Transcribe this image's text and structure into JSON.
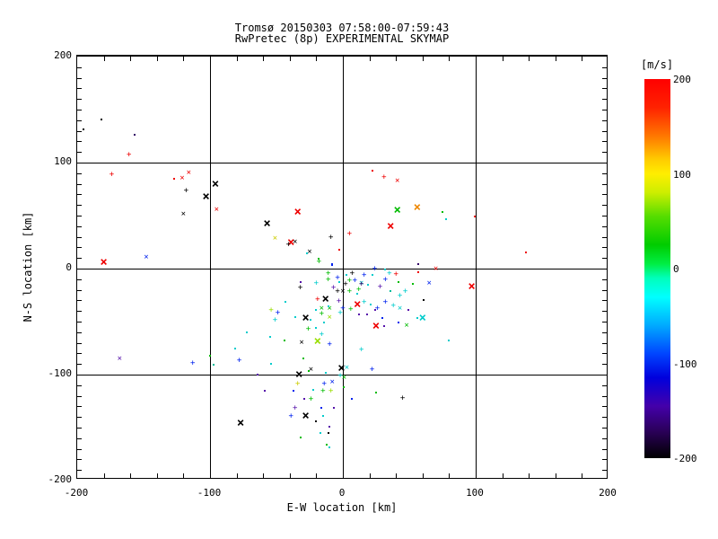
{
  "window": {
    "background": "#ffffff"
  },
  "chart_data": {
    "type": "scatter",
    "title": "Tromsø 20150303 07:58:00-07:59:43",
    "subtitle": "RwPretec (8p) EXPERIMENTAL SKYMAP",
    "xlabel": "E-W location [km]",
    "ylabel": "N-S location [km]",
    "xlim": [
      -200,
      200
    ],
    "ylim": [
      -200,
      200
    ],
    "grid": true,
    "grid_values_x": [
      -100,
      0,
      100
    ],
    "grid_values_y": [
      -100,
      0,
      100
    ],
    "x_major_ticks": [
      -200,
      -100,
      0,
      100,
      200
    ],
    "x_tick_labels": [
      "-200",
      "-100",
      "0",
      "100",
      "200"
    ],
    "x_minor_step": 20,
    "y_major_ticks": [
      -200,
      -100,
      0,
      100,
      200
    ],
    "y_tick_labels": [
      "-200",
      "-100",
      "0",
      "100",
      "200"
    ],
    "y_minor_step": 10,
    "colorbar": {
      "title": "[m/s]",
      "range": [
        -200,
        200
      ],
      "tick_values": [
        200,
        100,
        0,
        -100,
        -200
      ],
      "tick_labels": [
        "200",
        "100",
        "0",
        "-100",
        "-200"
      ],
      "stops": [
        [
          200,
          "#ff0000"
        ],
        [
          170,
          "#ff2200"
        ],
        [
          140,
          "#ff7700"
        ],
        [
          115,
          "#ffcc00"
        ],
        [
          100,
          "#ffee00"
        ],
        [
          80,
          "#ccee00"
        ],
        [
          55,
          "#55dd00"
        ],
        [
          25,
          "#00cc00"
        ],
        [
          5,
          "#00ee44"
        ],
        [
          -10,
          "#00ffbb"
        ],
        [
          -30,
          "#00ffff"
        ],
        [
          -60,
          "#00aaff"
        ],
        [
          -90,
          "#0044ff"
        ],
        [
          -115,
          "#0000dd"
        ],
        [
          -145,
          "#4400aa"
        ],
        [
          -172,
          "#2a0058"
        ],
        [
          -200,
          "#000000"
        ]
      ]
    },
    "palette": {
      "k": "#000000",
      "r": "#ee0000",
      "o": "#ee8800",
      "y": "#cccc00",
      "yg": "#99dd00",
      "g": "#00bb00",
      "t": "#00bb99",
      "c": "#00cccc",
      "b": "#0022ee",
      "pu": "#5511aa",
      "dp": "#330066"
    },
    "marker_legend": {
      "d": "dot",
      "p": "plus",
      "x": "small-x",
      "X": "large-x"
    },
    "point_format": [
      "x_km",
      "y_km",
      "color_key",
      "marker"
    ],
    "points": [
      [
        -182,
        141,
        "k",
        "d"
      ],
      [
        -195,
        131,
        "k",
        "d"
      ],
      [
        -157,
        126,
        "dp",
        "d"
      ],
      [
        -161,
        107,
        "r",
        "p"
      ],
      [
        -174,
        88,
        "r",
        "p"
      ],
      [
        -127,
        85,
        "r",
        "d"
      ],
      [
        -121,
        85,
        "r",
        "x"
      ],
      [
        -116,
        90,
        "r",
        "x"
      ],
      [
        -96,
        80,
        "k",
        "X"
      ],
      [
        -118,
        73,
        "k",
        "p"
      ],
      [
        -103,
        68,
        "k",
        "X"
      ],
      [
        -95,
        55,
        "r",
        "x"
      ],
      [
        -120,
        51,
        "k",
        "x"
      ],
      [
        -180,
        6,
        "r",
        "X"
      ],
      [
        -148,
        10,
        "b",
        "x"
      ],
      [
        22,
        92,
        "r",
        "d"
      ],
      [
        31,
        86,
        "r",
        "p"
      ],
      [
        41,
        82,
        "r",
        "x"
      ],
      [
        41,
        55,
        "g",
        "X"
      ],
      [
        56,
        58,
        "o",
        "X"
      ],
      [
        36,
        40,
        "r",
        "X"
      ],
      [
        5,
        32,
        "r",
        "p"
      ],
      [
        -34,
        53,
        "r",
        "X"
      ],
      [
        -57,
        42,
        "k",
        "X"
      ],
      [
        -51,
        28,
        "y",
        "x"
      ],
      [
        -39,
        25,
        "r",
        "X"
      ],
      [
        -36,
        25,
        "k",
        "x"
      ],
      [
        -41,
        22,
        "k",
        "p"
      ],
      [
        -9,
        29,
        "k",
        "p"
      ],
      [
        -25,
        15,
        "k",
        "x"
      ],
      [
        -27,
        14,
        "c",
        "d"
      ],
      [
        -3,
        18,
        "r",
        "d"
      ],
      [
        -18,
        9,
        "g",
        "d"
      ],
      [
        -18,
        6,
        "g",
        "p"
      ],
      [
        -8,
        4,
        "b",
        "d"
      ],
      [
        75,
        53,
        "g",
        "d"
      ],
      [
        78,
        47,
        "c",
        "d"
      ],
      [
        99,
        49,
        "r",
        "d"
      ],
      [
        138,
        15,
        "r",
        "d"
      ],
      [
        70,
        -1,
        "r",
        "x"
      ],
      [
        57,
        4,
        "dp",
        "d"
      ],
      [
        97,
        -17,
        "r",
        "X"
      ],
      [
        80,
        -68,
        "c",
        "d"
      ],
      [
        -32,
        -13,
        "pu",
        "d"
      ],
      [
        -32,
        -19,
        "k",
        "p"
      ],
      [
        -43,
        -31,
        "c",
        "d"
      ],
      [
        -54,
        -40,
        "yg",
        "p"
      ],
      [
        -49,
        -42,
        "b",
        "p"
      ],
      [
        -36,
        -46,
        "c",
        "d"
      ],
      [
        -51,
        -49,
        "c",
        "p"
      ],
      [
        -72,
        -60,
        "c",
        "d"
      ],
      [
        -55,
        -64,
        "c",
        "d"
      ],
      [
        -44,
        -68,
        "g",
        "d"
      ],
      [
        -81,
        -75,
        "c",
        "d"
      ],
      [
        -100,
        -82,
        "g",
        "d"
      ],
      [
        -168,
        -86,
        "pu",
        "x"
      ],
      [
        -113,
        -90,
        "b",
        "p"
      ],
      [
        -97,
        -91,
        "t",
        "d"
      ],
      [
        -78,
        -87,
        "b",
        "p"
      ],
      [
        -54,
        -90,
        "c",
        "d"
      ],
      [
        -64,
        -100,
        "pu",
        "d"
      ],
      [
        -33,
        -100,
        "k",
        "X"
      ],
      [
        -34,
        -109,
        "y",
        "p"
      ],
      [
        -59,
        -115,
        "pu",
        "d"
      ],
      [
        -37,
        -115,
        "b",
        "d"
      ],
      [
        -36,
        -132,
        "pu",
        "p"
      ],
      [
        -39,
        -140,
        "b",
        "p"
      ],
      [
        -77,
        -146,
        "k",
        "X"
      ],
      [
        -32,
        -159,
        "g",
        "d"
      ],
      [
        -8,
        3,
        "b",
        "d"
      ],
      [
        24,
        -1,
        "b",
        "p"
      ],
      [
        -11,
        -5,
        "g",
        "p"
      ],
      [
        3,
        -6,
        "c",
        "d"
      ],
      [
        7,
        -5,
        "k",
        "p"
      ],
      [
        16,
        -7,
        "b",
        "p"
      ],
      [
        22,
        -6,
        "c",
        "d"
      ],
      [
        40,
        -6,
        "r",
        "p"
      ],
      [
        57,
        -3,
        "r",
        "d"
      ],
      [
        -20,
        -14,
        "c",
        "p"
      ],
      [
        -11,
        -11,
        "g",
        "p"
      ],
      [
        -3,
        -13,
        "c",
        "d"
      ],
      [
        2,
        -15,
        "k",
        "p"
      ],
      [
        5,
        -12,
        "g",
        "p"
      ],
      [
        9,
        -12,
        "b",
        "p"
      ],
      [
        14,
        -14,
        "c",
        "x"
      ],
      [
        19,
        -15,
        "c",
        "d"
      ],
      [
        28,
        -18,
        "pu",
        "p"
      ],
      [
        36,
        -21,
        "t",
        "d"
      ],
      [
        47,
        -22,
        "c",
        "p"
      ],
      [
        53,
        -14,
        "g",
        "d"
      ],
      [
        65,
        -14,
        "b",
        "x"
      ],
      [
        -7,
        -19,
        "pu",
        "p"
      ],
      [
        -4,
        -22,
        "k",
        "p"
      ],
      [
        -13,
        -29,
        "k",
        "X"
      ],
      [
        -19,
        -30,
        "r",
        "p"
      ],
      [
        0,
        -22,
        "k",
        "x"
      ],
      [
        5,
        -22,
        "g",
        "p"
      ],
      [
        11,
        -24,
        "c",
        "d"
      ],
      [
        11,
        -34,
        "r",
        "X"
      ],
      [
        16,
        -32,
        "c",
        "p"
      ],
      [
        21,
        -34,
        "c",
        "d"
      ],
      [
        -3,
        -31,
        "pu",
        "p"
      ],
      [
        24,
        -39,
        "pu",
        "d"
      ],
      [
        32,
        -32,
        "b",
        "p"
      ],
      [
        38,
        -36,
        "c",
        "p"
      ],
      [
        43,
        -38,
        "c",
        "x"
      ],
      [
        49,
        -39,
        "pu",
        "d"
      ],
      [
        61,
        -30,
        "k",
        "d"
      ],
      [
        -16,
        -38,
        "g",
        "x"
      ],
      [
        -10,
        -38,
        "g",
        "x"
      ],
      [
        -10,
        -47,
        "yg",
        "x"
      ],
      [
        -28,
        -47,
        "k",
        "X"
      ],
      [
        -24,
        -48,
        "c",
        "d"
      ],
      [
        -14,
        -51,
        "c",
        "d"
      ],
      [
        -2,
        -42,
        "c",
        "p"
      ],
      [
        12,
        -43,
        "pu",
        "d"
      ],
      [
        30,
        -47,
        "b",
        "d"
      ],
      [
        60,
        -47,
        "c",
        "X"
      ],
      [
        56,
        -47,
        "c",
        "d"
      ],
      [
        25,
        -54,
        "r",
        "X"
      ],
      [
        31,
        -54,
        "pu",
        "d"
      ],
      [
        -20,
        -56,
        "c",
        "d"
      ],
      [
        -26,
        -58,
        "g",
        "p"
      ],
      [
        -16,
        -63,
        "c",
        "p"
      ],
      [
        48,
        -54,
        "g",
        "x"
      ],
      [
        -31,
        -70,
        "k",
        "x"
      ],
      [
        -19,
        -69,
        "yg",
        "X"
      ],
      [
        -10,
        -72,
        "b",
        "p"
      ],
      [
        14,
        -77,
        "c",
        "p"
      ],
      [
        -30,
        -85,
        "g",
        "d"
      ],
      [
        -1,
        -94,
        "k",
        "X"
      ],
      [
        3,
        -94,
        "c",
        "x"
      ],
      [
        22,
        -96,
        "b",
        "p"
      ],
      [
        -24,
        -96,
        "k",
        "x"
      ],
      [
        14,
        -15,
        "dp",
        "p"
      ],
      [
        12,
        -20,
        "g",
        "p"
      ],
      [
        32,
        -11,
        "b",
        "p"
      ],
      [
        35,
        -5,
        "c",
        "p"
      ],
      [
        43,
        -26,
        "c",
        "p"
      ],
      [
        26,
        -38,
        "b",
        "p"
      ],
      [
        18,
        -43,
        "pu",
        "d"
      ],
      [
        42,
        -51,
        "b",
        "d"
      ],
      [
        6,
        -39,
        "g",
        "p"
      ],
      [
        0,
        -38,
        "b",
        "p"
      ],
      [
        -11,
        -36,
        "c",
        "d"
      ],
      [
        -20,
        -39,
        "c",
        "d"
      ],
      [
        -16,
        -43,
        "g",
        "p"
      ],
      [
        -4,
        -9,
        "b",
        "p"
      ],
      [
        32,
        -1,
        "c",
        "d"
      ],
      [
        42,
        -13,
        "g",
        "d"
      ],
      [
        -26,
        -97,
        "g",
        "d"
      ],
      [
        -13,
        -98,
        "c",
        "d"
      ],
      [
        -2,
        -102,
        "c",
        "p"
      ],
      [
        1,
        -103,
        "g",
        "x"
      ],
      [
        -14,
        -109,
        "b",
        "p"
      ],
      [
        -8,
        -108,
        "b",
        "x"
      ],
      [
        -22,
        -114,
        "c",
        "d"
      ],
      [
        -15,
        -116,
        "g",
        "p"
      ],
      [
        -9,
        -116,
        "yg",
        "p"
      ],
      [
        1,
        -112,
        "g",
        "d"
      ],
      [
        25,
        -117,
        "g",
        "d"
      ],
      [
        7,
        -123,
        "b",
        "d"
      ],
      [
        45,
        -123,
        "k",
        "p"
      ],
      [
        -29,
        -123,
        "pu",
        "d"
      ],
      [
        -24,
        -124,
        "g",
        "p"
      ],
      [
        -16,
        -131,
        "b",
        "d"
      ],
      [
        -7,
        -131,
        "pu",
        "d"
      ],
      [
        -28,
        -139,
        "k",
        "X"
      ],
      [
        -15,
        -139,
        "c",
        "d"
      ],
      [
        -20,
        -144,
        "k",
        "d"
      ],
      [
        -10,
        -149,
        "pu",
        "d"
      ],
      [
        -17,
        -155,
        "c",
        "d"
      ],
      [
        -11,
        -155,
        "k",
        "d"
      ],
      [
        -12,
        -166,
        "g",
        "d"
      ],
      [
        -10,
        -169,
        "c",
        "d"
      ]
    ]
  }
}
